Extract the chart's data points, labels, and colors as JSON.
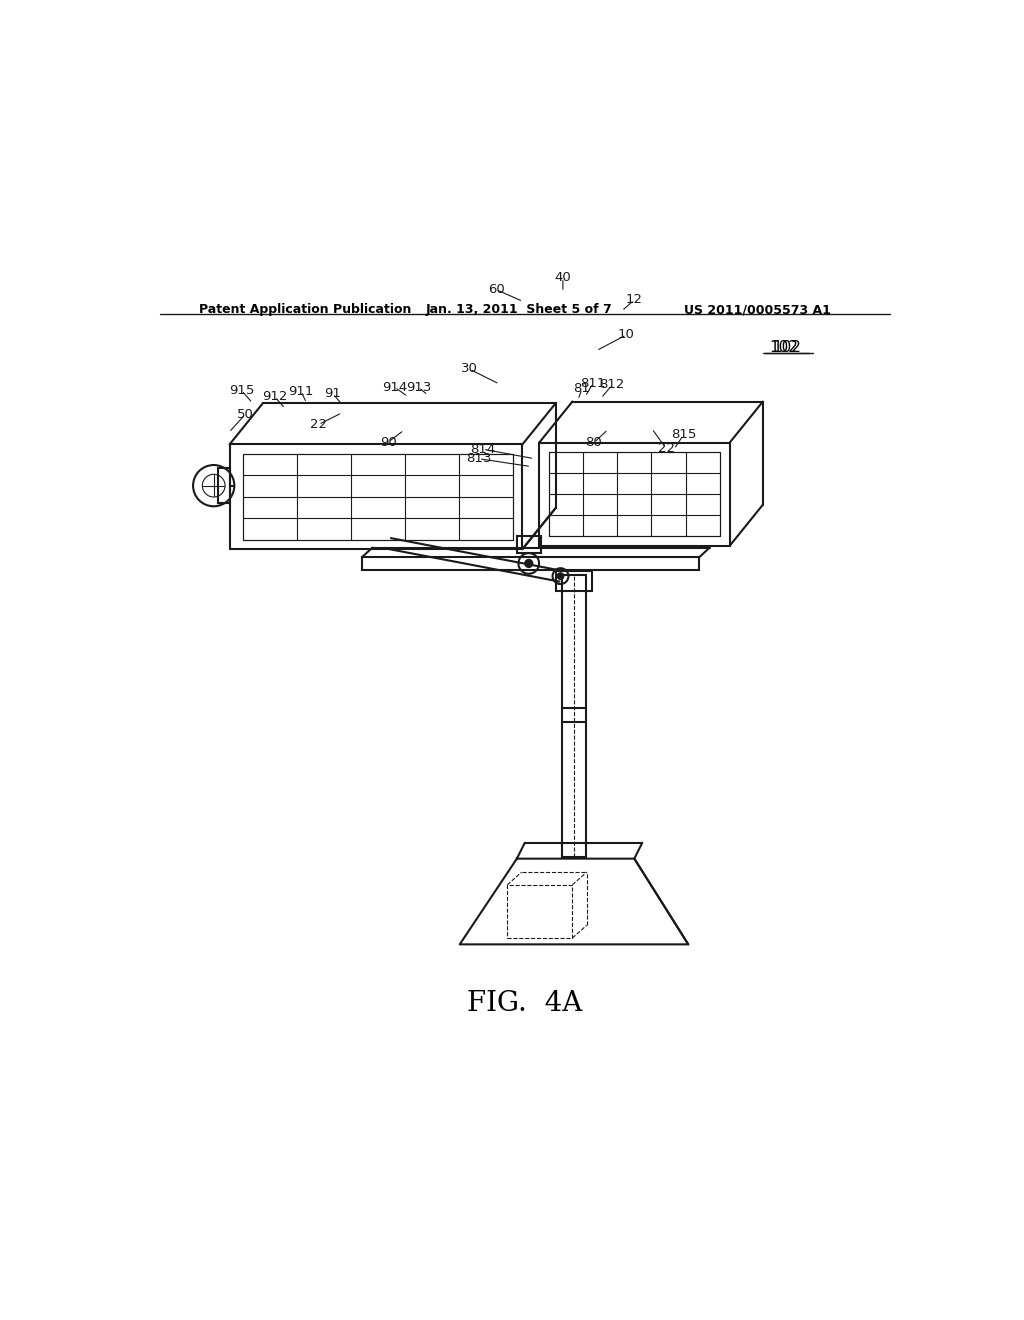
{
  "bg_color": "#ffffff",
  "line_color": "#1a1a1a",
  "header_text": "Patent Application Publication",
  "header_date": "Jan. 13, 2011  Sheet 5 of 7",
  "header_patent": "US 2011/0005573 A1",
  "figure_label": "FIG.  4A",
  "ref_num": "102"
}
